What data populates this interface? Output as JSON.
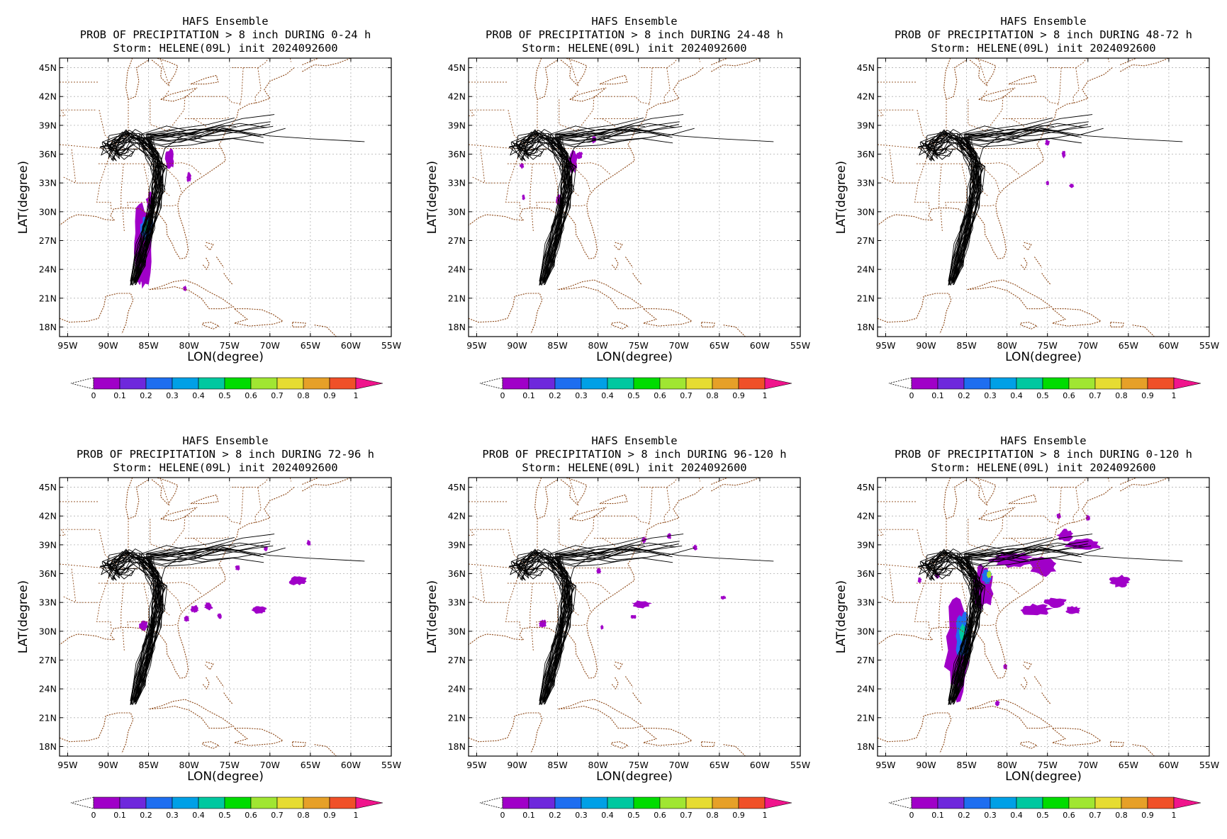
{
  "figure": {
    "ensemble_title": "HAFS Ensemble",
    "storm_line": "Storm: HELENE(09L) init 2024092600",
    "xlabel": "LON(degree)",
    "ylabel": "LAT(degree)",
    "lon_ticks": [
      "95W",
      "90W",
      "85W",
      "80W",
      "75W",
      "70W",
      "65W",
      "60W",
      "55W"
    ],
    "lat_ticks": [
      "45N",
      "42N",
      "39N",
      "36N",
      "33N",
      "30N",
      "27N",
      "24N",
      "21N",
      "18N"
    ],
    "lon_range": [
      -96,
      -55
    ],
    "lat_range": [
      17,
      46
    ],
    "colorbar": {
      "ticks": [
        "0",
        "0.1",
        "0.2",
        "0.3",
        "0.4",
        "0.5",
        "0.6",
        "0.7",
        "0.8",
        "0.9",
        "1"
      ],
      "colors": [
        "#a000c8",
        "#6e28dc",
        "#1e6ef0",
        "#00a0e6",
        "#00c8a0",
        "#00dc00",
        "#a0e632",
        "#e6dc32",
        "#e6a028",
        "#f05028"
      ],
      "over_color": "#f0148c",
      "under_color": "#ffffff"
    },
    "colors": {
      "tracks": "#000000",
      "coast": "#8b4513",
      "grid": "#b0b0b0"
    }
  },
  "panels": [
    {
      "title": "PROB OF PRECIPITATION > 8 inch DURING  0-24 h",
      "blobs": [
        {
          "lon": -85.6,
          "lat": 26.8,
          "rlon": 1.3,
          "rlat": 4.2,
          "level": 0
        },
        {
          "lon": -85.2,
          "lat": 28.2,
          "rlon": 0.8,
          "rlat": 1.6,
          "level": 2
        },
        {
          "lon": -85.3,
          "lat": 28.5,
          "rlon": 0.35,
          "rlat": 0.7,
          "level": 4
        },
        {
          "lon": -84.8,
          "lat": 31.0,
          "rlon": 0.5,
          "rlat": 1.0,
          "level": 0
        },
        {
          "lon": -82.4,
          "lat": 35.5,
          "rlon": 0.6,
          "rlat": 1.0,
          "level": 0
        },
        {
          "lon": -80.0,
          "lat": 33.6,
          "rlon": 0.3,
          "rlat": 0.5,
          "level": 0
        },
        {
          "lon": -80.5,
          "lat": 22.0,
          "rlon": 0.25,
          "rlat": 0.3,
          "level": 0
        },
        {
          "lon": -86.1,
          "lat": 23.2,
          "rlon": 0.5,
          "rlat": 0.7,
          "level": 0
        }
      ]
    },
    {
      "title": "PROB OF PRECIPITATION > 8 inch DURING 24-48 h",
      "blobs": [
        {
          "lon": -83.1,
          "lat": 35.2,
          "rlon": 0.6,
          "rlat": 1.2,
          "level": 0
        },
        {
          "lon": -82.3,
          "lat": 35.9,
          "rlon": 0.4,
          "rlat": 0.4,
          "level": 0
        },
        {
          "lon": -80.5,
          "lat": 37.5,
          "rlon": 0.3,
          "rlat": 0.4,
          "level": 0
        },
        {
          "lon": -84.8,
          "lat": 31.2,
          "rlon": 0.4,
          "rlat": 0.6,
          "level": 0
        },
        {
          "lon": -89.4,
          "lat": 34.8,
          "rlon": 0.25,
          "rlat": 0.3,
          "level": 0
        },
        {
          "lon": -89.2,
          "lat": 31.5,
          "rlon": 0.2,
          "rlat": 0.3,
          "level": 0
        }
      ]
    },
    {
      "title": "PROB OF PRECIPITATION > 8 inch DURING 48-72 h",
      "blobs": [
        {
          "lon": -75.0,
          "lat": 37.2,
          "rlon": 0.3,
          "rlat": 0.3,
          "level": 0
        },
        {
          "lon": -73.0,
          "lat": 36.0,
          "rlon": 0.25,
          "rlat": 0.4,
          "level": 0
        },
        {
          "lon": -75.0,
          "lat": 33.0,
          "rlon": 0.2,
          "rlat": 0.25,
          "level": 0
        },
        {
          "lon": -72.0,
          "lat": 32.7,
          "rlon": 0.3,
          "rlat": 0.2,
          "level": 0
        }
      ]
    },
    {
      "title": "PROB OF PRECIPITATION > 8 inch DURING 72-96 h",
      "blobs": [
        {
          "lon": -85.6,
          "lat": 30.6,
          "rlon": 0.6,
          "rlat": 0.5,
          "level": 0
        },
        {
          "lon": -79.3,
          "lat": 32.3,
          "rlon": 0.5,
          "rlat": 0.4,
          "level": 0
        },
        {
          "lon": -77.6,
          "lat": 32.6,
          "rlon": 0.5,
          "rlat": 0.4,
          "level": 0
        },
        {
          "lon": -80.3,
          "lat": 31.3,
          "rlon": 0.35,
          "rlat": 0.3,
          "level": 0
        },
        {
          "lon": -76.2,
          "lat": 31.6,
          "rlon": 0.3,
          "rlat": 0.3,
          "level": 0
        },
        {
          "lon": -71.3,
          "lat": 32.2,
          "rlon": 0.9,
          "rlat": 0.4,
          "level": 0
        },
        {
          "lon": -66.5,
          "lat": 35.3,
          "rlon": 1.2,
          "rlat": 0.5,
          "level": 0
        },
        {
          "lon": -70.5,
          "lat": 38.6,
          "rlon": 0.25,
          "rlat": 0.3,
          "level": 0
        },
        {
          "lon": -65.2,
          "lat": 39.2,
          "rlon": 0.25,
          "rlat": 0.3,
          "level": 0
        },
        {
          "lon": -74.0,
          "lat": 36.6,
          "rlon": 0.3,
          "rlat": 0.3,
          "level": 0
        }
      ]
    },
    {
      "title": "PROB OF PRECIPITATION > 8 inch DURING 96-120 h",
      "blobs": [
        {
          "lon": -86.8,
          "lat": 30.8,
          "rlon": 0.5,
          "rlat": 0.4,
          "level": 0
        },
        {
          "lon": -74.6,
          "lat": 32.8,
          "rlon": 1.2,
          "rlat": 0.4,
          "level": 0
        },
        {
          "lon": -75.6,
          "lat": 31.5,
          "rlon": 0.4,
          "rlat": 0.2,
          "level": 0
        },
        {
          "lon": -74.3,
          "lat": 39.5,
          "rlon": 0.3,
          "rlat": 0.3,
          "level": 0
        },
        {
          "lon": -71.2,
          "lat": 39.9,
          "rlon": 0.25,
          "rlat": 0.3,
          "level": 0
        },
        {
          "lon": -68.0,
          "lat": 38.7,
          "rlon": 0.3,
          "rlat": 0.3,
          "level": 0
        },
        {
          "lon": -64.5,
          "lat": 33.5,
          "rlon": 0.35,
          "rlat": 0.2,
          "level": 0
        },
        {
          "lon": -79.9,
          "lat": 36.3,
          "rlon": 0.3,
          "rlat": 0.3,
          "level": 0
        },
        {
          "lon": -79.5,
          "lat": 30.4,
          "rlon": 0.2,
          "rlat": 0.25,
          "level": 0
        }
      ]
    },
    {
      "title": "PROB OF PRECIPITATION > 8 inch DURING 0-120 h",
      "blobs": [
        {
          "lon": -86.0,
          "lat": 28.0,
          "rlon": 1.6,
          "rlat": 5.2,
          "level": 0
        },
        {
          "lon": -85.5,
          "lat": 29.5,
          "rlon": 0.9,
          "rlat": 2.5,
          "level": 2
        },
        {
          "lon": -85.5,
          "lat": 29.8,
          "rlon": 0.4,
          "rlat": 1.0,
          "level": 4
        },
        {
          "lon": -83.0,
          "lat": 34.5,
          "rlon": 1.4,
          "rlat": 2.2,
          "level": 0
        },
        {
          "lon": -82.5,
          "lat": 35.7,
          "rlon": 0.6,
          "rlat": 0.8,
          "level": 2
        },
        {
          "lon": -82.2,
          "lat": 35.9,
          "rlon": 0.3,
          "rlat": 0.4,
          "level": 6
        },
        {
          "lon": -79.5,
          "lat": 37.5,
          "rlon": 2.5,
          "rlat": 0.8,
          "level": 0
        },
        {
          "lon": -75.5,
          "lat": 36.8,
          "rlon": 1.8,
          "rlat": 1.0,
          "level": 0
        },
        {
          "lon": -76.5,
          "lat": 32.2,
          "rlon": 2.0,
          "rlat": 0.6,
          "level": 0
        },
        {
          "lon": -74.0,
          "lat": 33.0,
          "rlon": 1.4,
          "rlat": 0.5,
          "level": 0
        },
        {
          "lon": -71.8,
          "lat": 32.2,
          "rlon": 1.0,
          "rlat": 0.4,
          "level": 0
        },
        {
          "lon": -66.0,
          "lat": 35.2,
          "rlon": 1.3,
          "rlat": 0.6,
          "level": 0
        },
        {
          "lon": -70.5,
          "lat": 39.0,
          "rlon": 2.2,
          "rlat": 0.6,
          "level": 0
        },
        {
          "lon": -72.8,
          "lat": 40.0,
          "rlon": 1.0,
          "rlat": 0.6,
          "level": 0
        },
        {
          "lon": -73.6,
          "lat": 42.0,
          "rlon": 0.3,
          "rlat": 0.3,
          "level": 0
        },
        {
          "lon": -70.0,
          "lat": 41.8,
          "rlon": 0.3,
          "rlat": 0.3,
          "level": 0
        },
        {
          "lon": -88.6,
          "lat": 35.8,
          "rlon": 0.3,
          "rlat": 0.3,
          "level": 0
        },
        {
          "lon": -90.8,
          "lat": 35.3,
          "rlon": 0.25,
          "rlat": 0.3,
          "level": 0
        },
        {
          "lon": -80.2,
          "lat": 26.3,
          "rlon": 0.25,
          "rlat": 0.3,
          "level": 0
        },
        {
          "lon": -81.2,
          "lat": 22.5,
          "rlon": 0.3,
          "rlat": 0.3,
          "level": 0
        }
      ]
    }
  ]
}
